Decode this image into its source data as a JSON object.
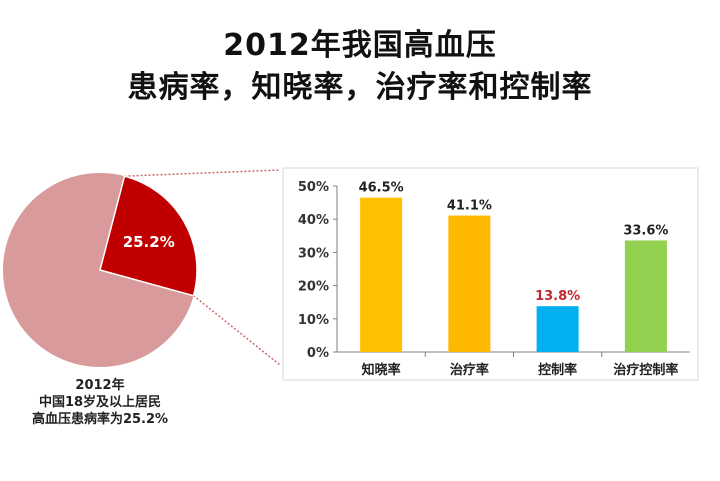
{
  "title_line1": "2012年我国高血压",
  "title_line2": "患病率，知晓率，治疗率和控制率",
  "colors": {
    "pie_main": "#d89a9a",
    "pie_slice": "#c00000",
    "bar_1": "#ffc000",
    "bar_2": "#ffb800",
    "bar_3": "#00b0f0",
    "bar_4": "#92d050",
    "highlight_label": "#c0282d",
    "connector": "#c9686c"
  },
  "pie_caption": [
    "2012年",
    "中国18岁及以上居民",
    "高血压患病率为25.2%"
  ],
  "chart_data": [
    {
      "type": "pie",
      "slices": [
        {
          "label": "25.2%",
          "value": 25.2
        },
        {
          "label": "",
          "value": 74.8
        }
      ]
    },
    {
      "type": "bar",
      "categories": [
        "知晓率",
        "治疗率",
        "控制率",
        "治疗控制率"
      ],
      "values": [
        46.5,
        41.1,
        13.8,
        33.6
      ],
      "value_labels": [
        "46.5%",
        "41.1%",
        "13.8%",
        "33.6%"
      ],
      "ylim": [
        0,
        50
      ],
      "yticks": [
        "0%",
        "10%",
        "20%",
        "30%",
        "40%",
        "50%"
      ],
      "grid": false
    }
  ]
}
